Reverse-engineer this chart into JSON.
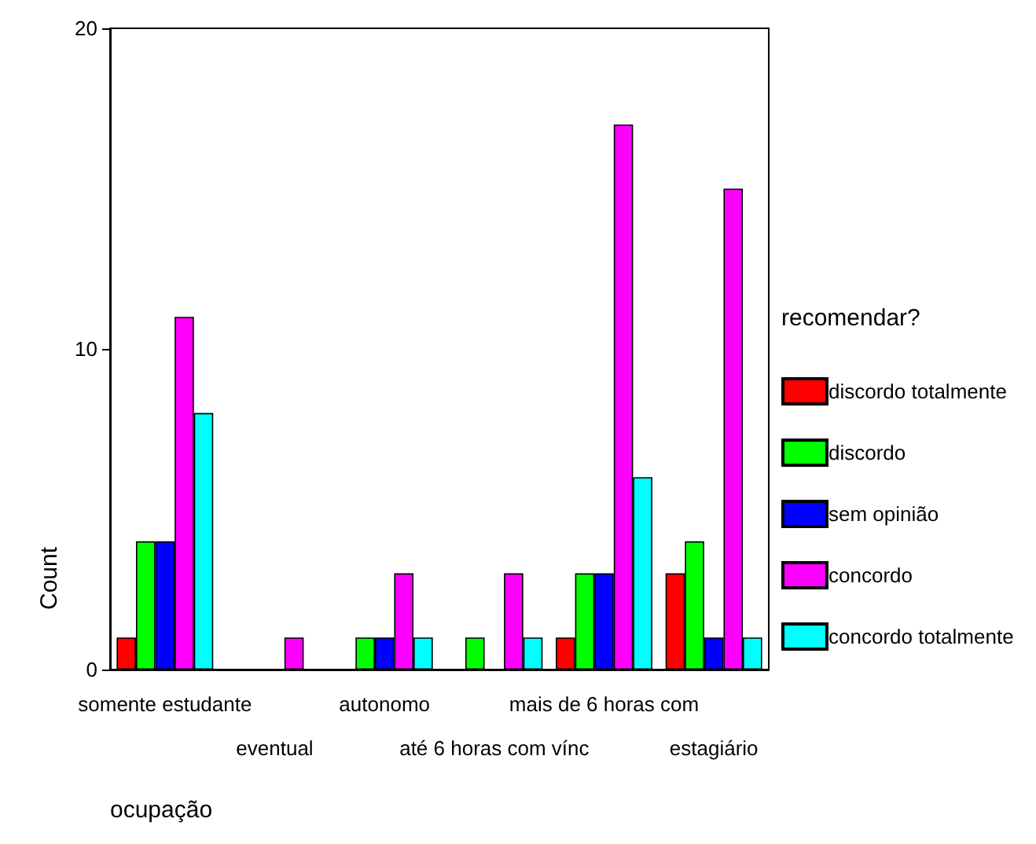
{
  "chart_data": {
    "type": "bar",
    "xlabel": "ocupação",
    "ylabel": "Count",
    "legend_title": "recomendar?",
    "legend": "right",
    "grid": false,
    "categories": [
      "somente estudante",
      "eventual",
      "autonomo",
      "até 6 horas com vínc",
      "mais de 6 horas com",
      "estagiário"
    ],
    "ylim": [
      0,
      20
    ],
    "yticks": [
      0,
      10,
      20
    ],
    "series": [
      {
        "name": "discordo totalmente",
        "color": "#ff0000",
        "values": [
          1,
          null,
          null,
          null,
          1,
          3
        ]
      },
      {
        "name": "discordo",
        "color": "#00ff00",
        "values": [
          4,
          null,
          1,
          1,
          3,
          4
        ]
      },
      {
        "name": "sem opinião",
        "color": "#0000ff",
        "values": [
          4,
          null,
          1,
          null,
          3,
          1
        ]
      },
      {
        "name": "concordo",
        "color": "#ff00ff",
        "values": [
          11,
          1,
          3,
          3,
          17,
          15
        ]
      },
      {
        "name": "concordo totalmente",
        "color": "#00ffff",
        "values": [
          8,
          null,
          1,
          1,
          6,
          1
        ]
      }
    ]
  }
}
